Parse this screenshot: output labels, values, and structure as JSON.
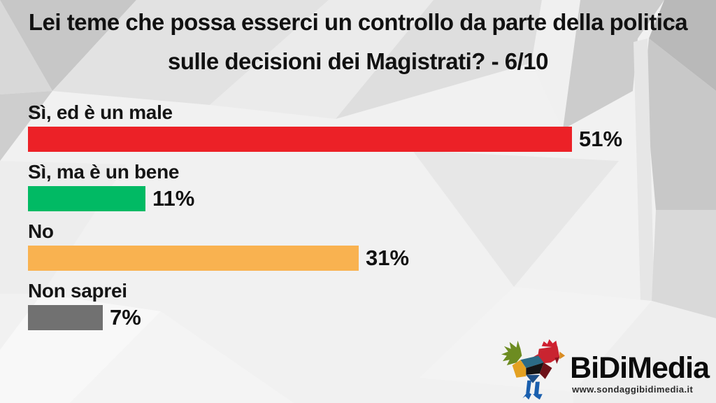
{
  "title": "Lei teme che possa esserci un controllo da parte della politica sulle decisioni dei Magistrati? - 6/10",
  "chart_data": {
    "type": "bar",
    "orientation": "horizontal",
    "title": "Lei teme che possa esserci un controllo da parte della politica sulle decisioni dei Magistrati? - 6/10",
    "categories": [
      "Sì, ed è un male",
      "Sì, ma è un bene",
      "No",
      "Non saprei"
    ],
    "values": [
      51,
      11,
      31,
      7
    ],
    "value_labels": [
      "51%",
      "11%",
      "31%",
      "7%"
    ],
    "colors": [
      "#EC2127",
      "#01BA64",
      "#F9B250",
      "#717171"
    ],
    "unit": "percent",
    "xlim": [
      0,
      51
    ],
    "grid": false,
    "legend": false,
    "value_label_position": "right-of-bar",
    "category_label_position": "above-bar"
  },
  "footer": {
    "brand": "BiDiMedia",
    "url": "www.sondaggibidimedia.it",
    "logo_icon": "rooster-low-poly",
    "logo_colors": {
      "tail_green": "#6d8c21",
      "head_red": "#cc2130",
      "body_teal": "#2b6b85",
      "wing_black": "#141414",
      "breast_orange": "#e3a122",
      "side_maroon": "#6e1219",
      "legs_blue": "#1a5fae"
    }
  },
  "style": {
    "background_base": "#f1f1f1",
    "text_color": "#111111",
    "background_pattern": "low-poly-gray-triangles"
  }
}
